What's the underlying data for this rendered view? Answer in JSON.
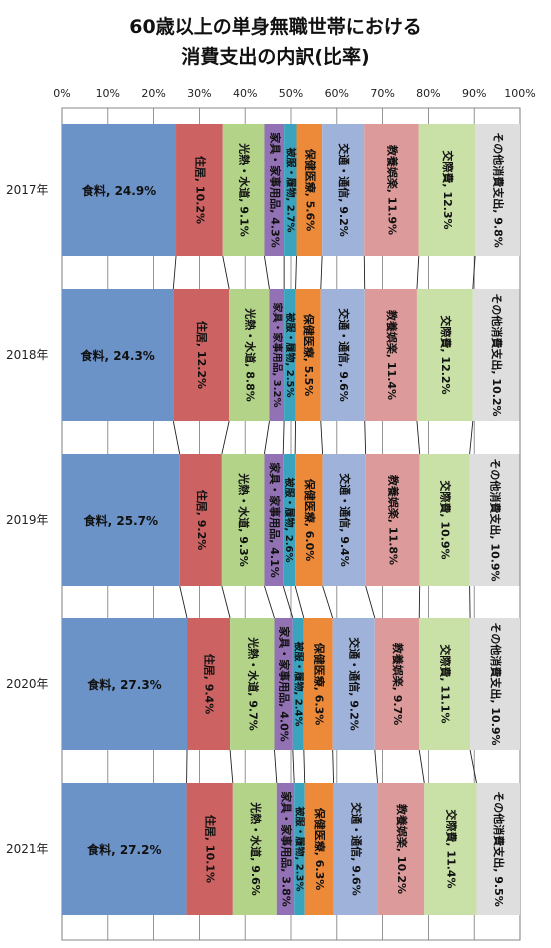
{
  "title_lines": [
    "60歳以上の単身無職世帯における",
    "消費支出の内訳(比率)"
  ],
  "chart_data": {
    "type": "bar",
    "orientation": "horizontal-stacked-100",
    "title": "60歳以上の単身無職世帯における消費支出の内訳(比率)",
    "categories": [
      "2017年",
      "2018年",
      "2019年",
      "2020年",
      "2021年"
    ],
    "x_ticks": [
      "0%",
      "10%",
      "20%",
      "30%",
      "40%",
      "50%",
      "60%",
      "70%",
      "80%",
      "90%",
      "100%"
    ],
    "xlim": [
      0,
      100
    ],
    "grid": true,
    "series": [
      {
        "name": "食料",
        "color": "#6b93c8",
        "values": [
          24.9,
          24.3,
          25.7,
          27.3,
          27.2
        ],
        "labels": [
          "食料, 24.9%",
          "食料, 24.3%",
          "食料, 25.7%",
          "食料, 27.3%",
          "食料, 27.2%"
        ]
      },
      {
        "name": "住居",
        "color": "#cc6262",
        "values": [
          10.2,
          12.2,
          9.2,
          9.4,
          10.1
        ],
        "labels": [
          "住居, 10.2%",
          "住居, 12.2%",
          "住居, 9.2%",
          "住居, 9.4%",
          "住居, 10.1%"
        ]
      },
      {
        "name": "光熱・水道",
        "color": "#b3d488",
        "values": [
          9.1,
          8.8,
          9.3,
          9.7,
          9.6
        ],
        "labels": [
          "光熱・水道, 9.1%",
          "光熱・水道, 8.8%",
          "光熱・水道, 9.3%",
          "光熱・水道, 9.7%",
          "光熱・水道, 9.6%"
        ]
      },
      {
        "name": "家具・家事用品",
        "color": "#9272b4",
        "values": [
          4.3,
          3.2,
          4.1,
          4.0,
          3.8
        ],
        "labels": [
          "家具・家事用品, 4.3%",
          "家具・家事用品, 3.2%",
          "家具・家事用品, 4.1%",
          "家具・家事用品, 4.0%",
          "家具・家事用品, 3.8%"
        ]
      },
      {
        "name": "被服・履物",
        "color": "#3aa4bf",
        "values": [
          2.7,
          2.5,
          2.6,
          2.4,
          2.3
        ],
        "labels": [
          "被服・履物, 2.7%",
          "被服・履物, 2.5%",
          "被服・履物, 2.6%",
          "被服・履物, 2.4%",
          "被服・履物, 2.3%"
        ]
      },
      {
        "name": "保健医療",
        "color": "#ec8a3a",
        "values": [
          5.6,
          5.5,
          6.0,
          6.3,
          6.3
        ],
        "labels": [
          "保健医療, 5.6%",
          "保健医療, 5.5%",
          "保健医療, 6.0%",
          "保健医療, 6.3%",
          "保健医療, 6.3%"
        ]
      },
      {
        "name": "交通・通信",
        "color": "#9fb3da",
        "values": [
          9.2,
          9.6,
          9.4,
          9.2,
          9.6
        ],
        "labels": [
          "交通・通信, 9.2%",
          "交通・通信, 9.6%",
          "交通・通信, 9.4%",
          "交通・通信, 9.2%",
          "交通・通信, 9.6%"
        ]
      },
      {
        "name": "教養娯楽",
        "color": "#dc9a9a",
        "values": [
          11.9,
          11.4,
          11.8,
          9.7,
          10.2
        ],
        "labels": [
          "教養娯楽, 11.9%",
          "教養娯楽, 11.4%",
          "教養娯楽, 11.8%",
          "教養娯楽, 9.7%",
          "教養娯楽, 10.2%"
        ]
      },
      {
        "name": "交際費",
        "color": "#c9e1a6",
        "values": [
          12.3,
          12.2,
          10.9,
          11.1,
          11.4
        ],
        "labels": [
          "交際費, 12.3%",
          "交際費, 12.2%",
          "交際費, 10.9%",
          "交際費, 11.1%",
          "交際費, 11.4%"
        ]
      },
      {
        "name": "その他消費支出",
        "color": "#dedede",
        "values": [
          9.8,
          10.2,
          10.9,
          10.9,
          9.5
        ],
        "labels": [
          "その他消費支出, 9.8%",
          "その他消費支出, 10.2%",
          "その他消費支出, 10.9%",
          "その他消費支出, 10.9%",
          "その他消費支出, 9.5%"
        ]
      }
    ]
  }
}
